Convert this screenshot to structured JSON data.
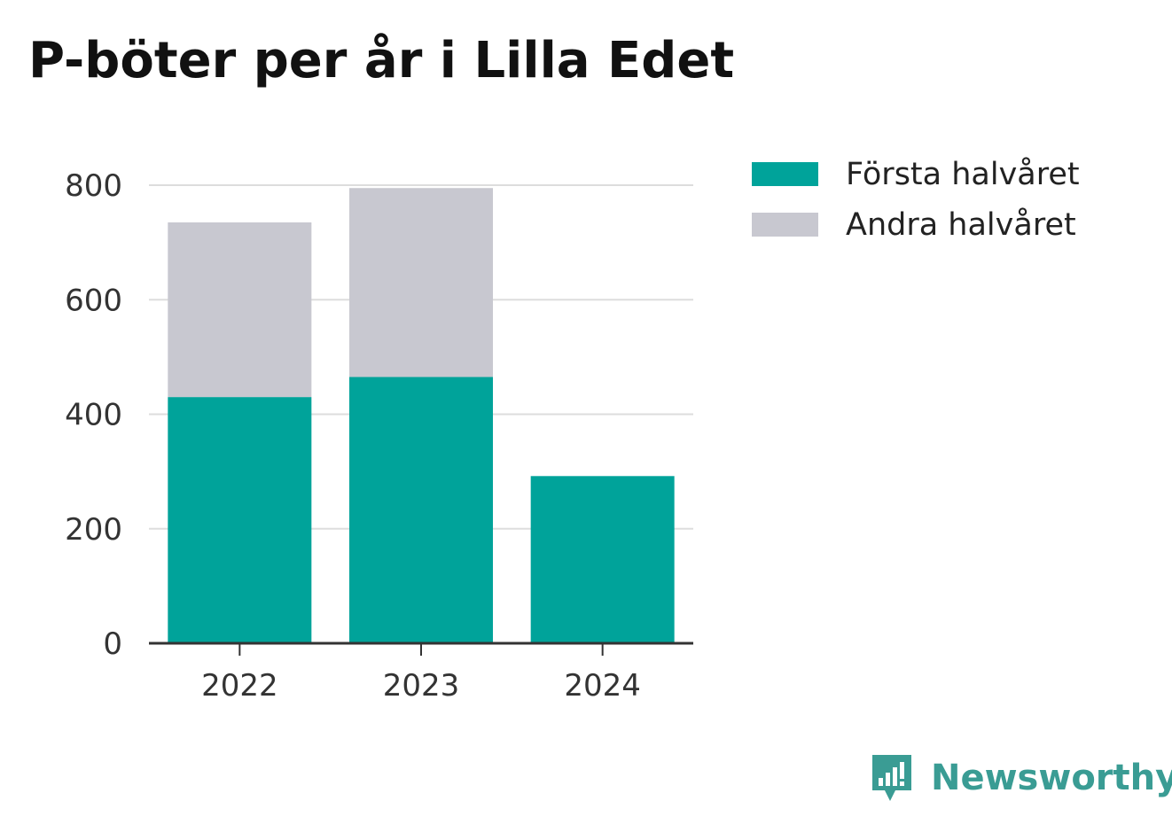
{
  "title": "P-böter per år i Lilla Edet",
  "brand": {
    "name": "Newsworthy",
    "icon": "newsworthy-logo-icon",
    "color": "#3a9c94"
  },
  "colors": {
    "first": "#00a39a",
    "second": "#c8c8d0",
    "grid": "#dddddd",
    "axis": "#333333"
  },
  "chart_data": {
    "type": "bar",
    "stacked": true,
    "categories": [
      "2022",
      "2023",
      "2024"
    ],
    "series": [
      {
        "name": "Första halvåret",
        "values": [
          430,
          465,
          292
        ]
      },
      {
        "name": "Andra halvåret",
        "values": [
          305,
          330,
          0
        ]
      }
    ],
    "title": "P-böter per år i Lilla Edet",
    "xlabel": "",
    "ylabel": "",
    "ylim": [
      0,
      800
    ],
    "yticks": [
      0,
      200,
      400,
      600,
      800
    ],
    "grid": true,
    "legend_position": "top-right"
  }
}
